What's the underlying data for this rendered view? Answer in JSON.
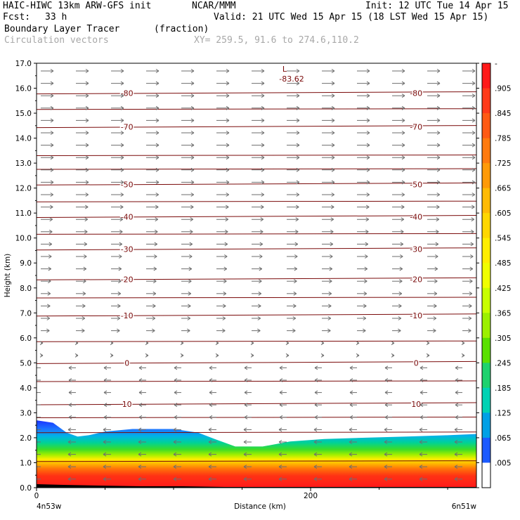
{
  "header": {
    "model": "HAIC-HIWC 13km ARW-GFS init",
    "center": "NCAR/MMM",
    "init": "Init: 12 UTC Tue 14 Apr 15",
    "fcst_label": "Fcst:",
    "fcst_value": "33 h",
    "valid": "Valid: 21 UTC Wed 15 Apr 15 (18 LST Wed 15 Apr 15)",
    "field_name": "Boundary Layer Tracer",
    "field_units": "(fraction)",
    "vector_label": "Circulation vectors",
    "xy_label": "XY= 259.5, 91.6 to 274.6,110.2"
  },
  "chart_data": {
    "type": "heatmap",
    "ylabel": "Height (km)",
    "xlabel": "Distance (km)",
    "x_left_label": "4n53w",
    "x_right_label": "6n51w",
    "x_ticks": [
      0,
      200
    ],
    "xlim": [
      0,
      321
    ],
    "y_ticks": [
      "0.0",
      "1.0",
      "2.0",
      "3.0",
      "4.0",
      "5.0",
      "6.0",
      "7.0",
      "8.0",
      "9.0",
      "10.0",
      "11.0",
      "12.0",
      "13.0",
      "14.0",
      "15.0",
      "16.0",
      "17.0"
    ],
    "ylim": [
      0,
      17
    ],
    "colorbar": {
      "labels": [
        "-",
        ".905",
        ".845",
        ".785",
        ".725",
        ".665",
        ".605",
        ".545",
        ".485",
        ".425",
        ".365",
        ".305",
        ".245",
        ".185",
        ".125",
        ".065",
        ".005"
      ],
      "colors": [
        "#ff1a1a",
        "#ff3a1a",
        "#ff5a14",
        "#ff7a0e",
        "#ff9a08",
        "#ffba05",
        "#ffd700",
        "#ffee00",
        "#f0ff00",
        "#c8ff00",
        "#9cf000",
        "#5ae000",
        "#1ed26e",
        "#00d2b4",
        "#00a0e6",
        "#1c5aff",
        "#ffffff"
      ]
    },
    "temperature_contours": [
      {
        "level": 10,
        "label": "10",
        "height_km": 3.35
      },
      {
        "level": 0,
        "label": "0",
        "height_km": 5.0
      },
      {
        "level": -10,
        "label": "-10",
        "height_km": 6.9
      },
      {
        "level": -20,
        "label": "-20",
        "height_km": 8.35
      },
      {
        "level": -30,
        "label": "-30",
        "height_km": 9.55
      },
      {
        "level": -40,
        "label": "-40",
        "height_km": 10.85
      },
      {
        "level": -50,
        "label": "-50",
        "height_km": 12.15
      },
      {
        "level": -70,
        "label": "-70",
        "height_km": 14.45
      },
      {
        "level": -80,
        "label": "-80",
        "height_km": 15.8
      }
    ],
    "extra_contours_km": [
      1.05,
      2.2,
      2.8,
      4.25,
      5.85,
      7.6,
      10.15,
      11.45,
      12.75,
      13.3,
      15.15
    ],
    "minimum_marker": {
      "symbol": "L",
      "value": "-83.62",
      "x_km": 181,
      "height_km": 16.55
    },
    "boundary_layer_top_km": [
      [
        0,
        2.7
      ],
      [
        12,
        2.6
      ],
      [
        22,
        2.2
      ],
      [
        30,
        2.05
      ],
      [
        38,
        2.1
      ],
      [
        50,
        2.25
      ],
      [
        70,
        2.35
      ],
      [
        100,
        2.35
      ],
      [
        118,
        2.2
      ],
      [
        130,
        1.95
      ],
      [
        145,
        1.65
      ],
      [
        165,
        1.65
      ],
      [
        185,
        1.85
      ],
      [
        210,
        1.95
      ],
      [
        240,
        2.0
      ],
      [
        270,
        2.05
      ],
      [
        300,
        2.1
      ],
      [
        321,
        2.15
      ]
    ]
  }
}
